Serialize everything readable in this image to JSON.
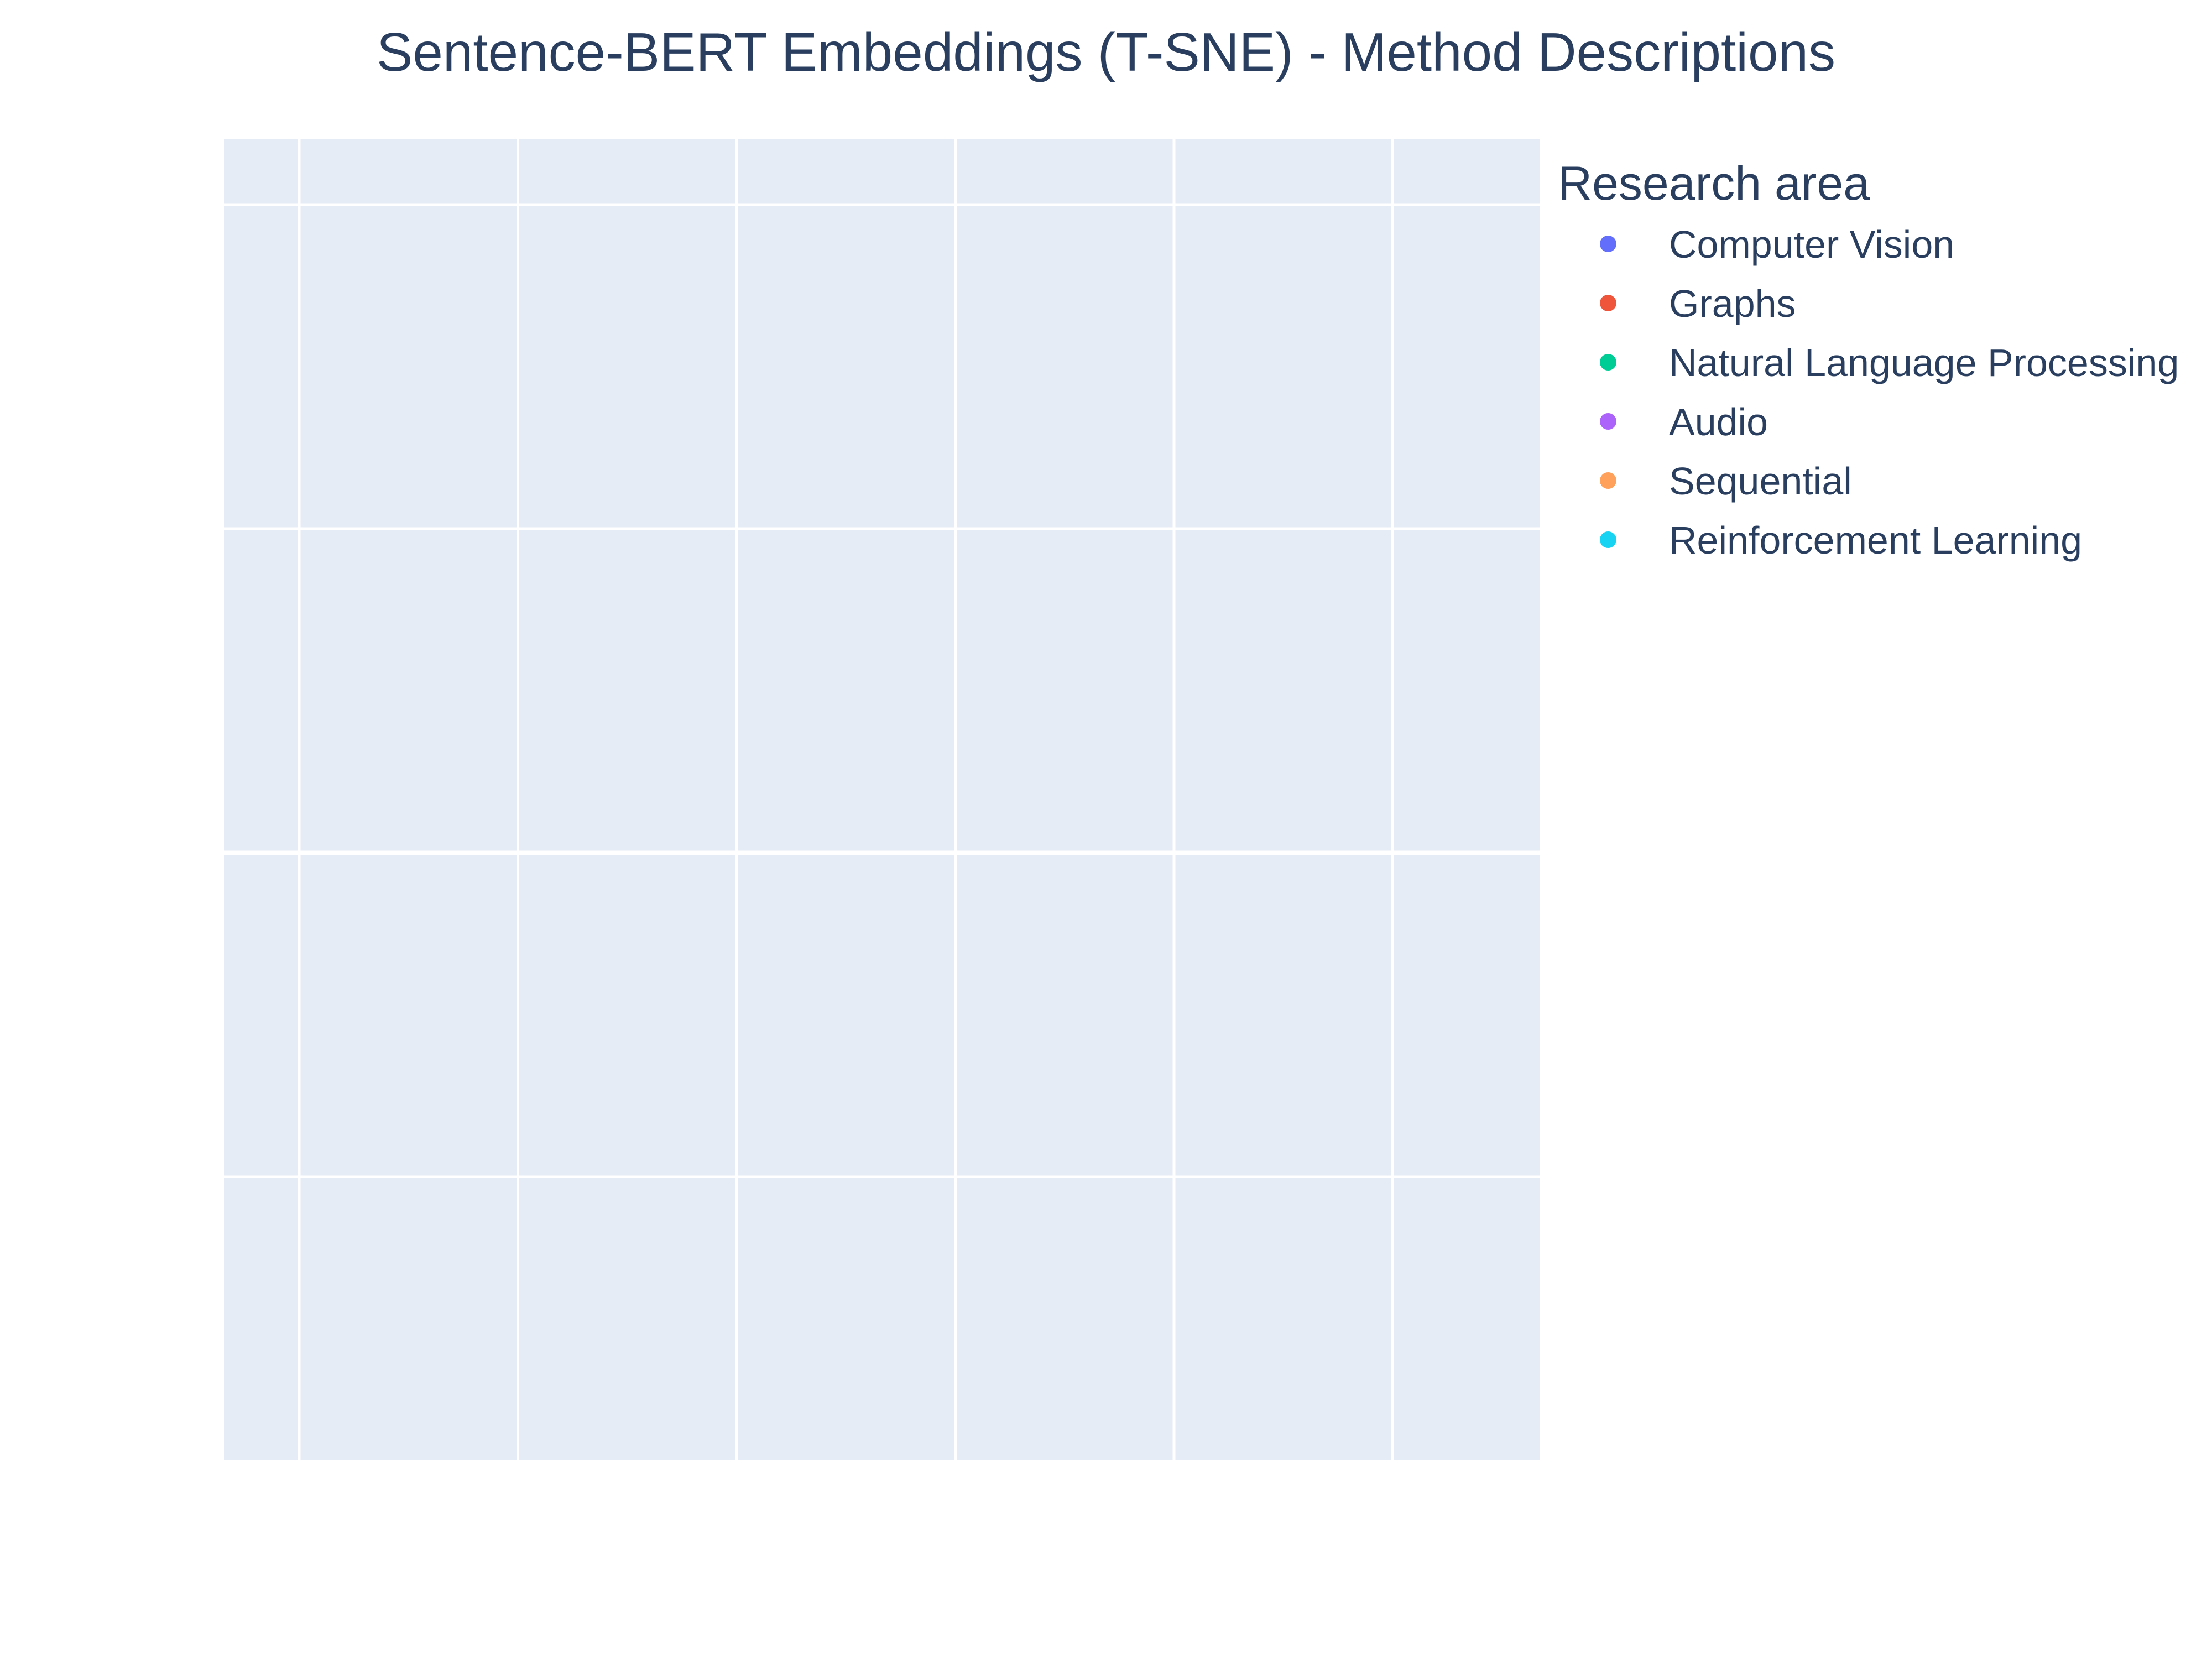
{
  "chart_data": {
    "type": "scatter",
    "title": "Sentence-BERT Embeddings (T-SNE) - Method Descriptions",
    "xlabel": "",
    "ylabel": "",
    "x_gridlines": 6,
    "y_gridlines": 4,
    "grid": true,
    "background_color": "#e5ecf6",
    "legend": {
      "title": "Research area",
      "placement": "right"
    },
    "series": [
      {
        "name": "Computer Vision",
        "color": "#636efa",
        "points": []
      },
      {
        "name": "Graphs",
        "color": "#ef553b",
        "points": []
      },
      {
        "name": "Natural Language Processing",
        "color": "#00cc96",
        "points": []
      },
      {
        "name": "Audio",
        "color": "#ab63fa",
        "points": []
      },
      {
        "name": "Sequential",
        "color": "#ffa15a",
        "points": []
      },
      {
        "name": "Reinforcement Learning",
        "color": "#19d3f3",
        "points": []
      }
    ]
  }
}
